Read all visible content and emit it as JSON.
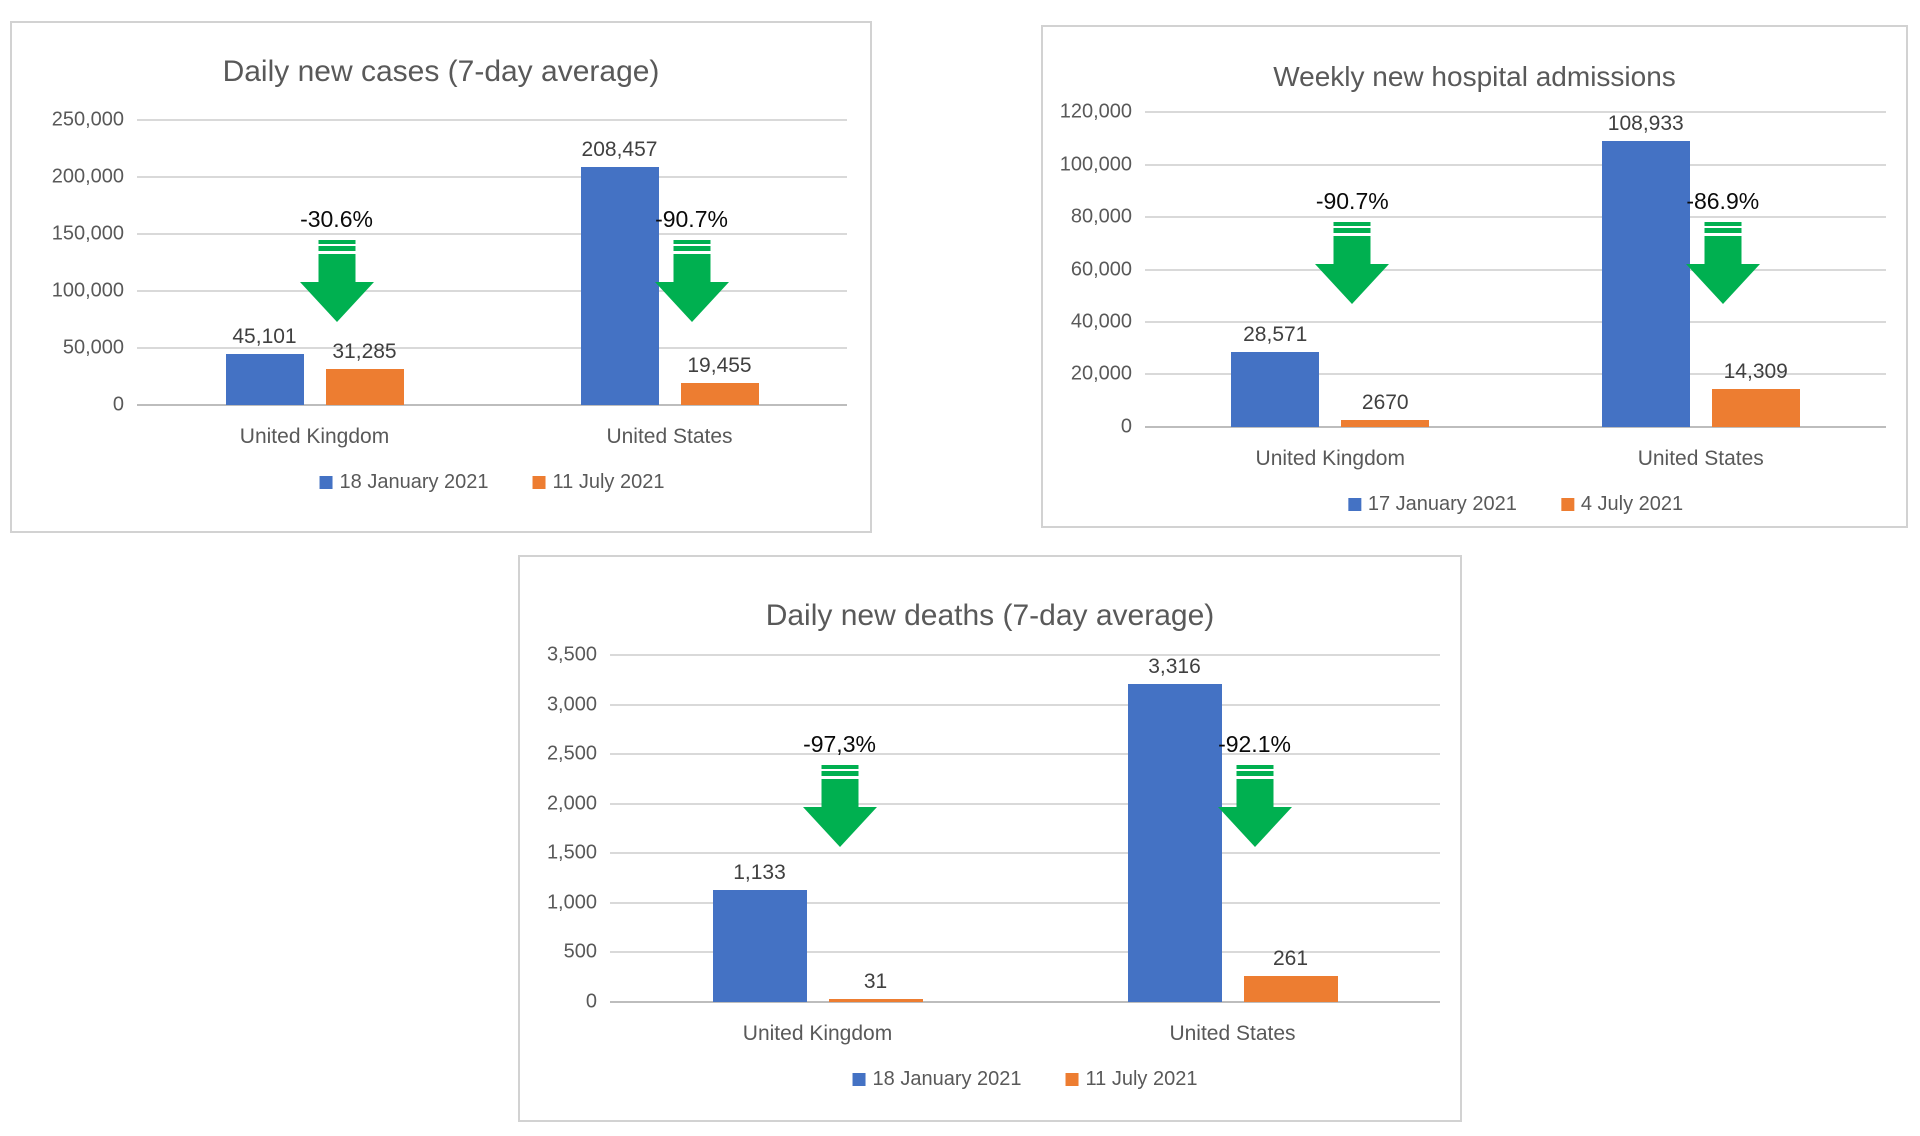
{
  "colors": {
    "series_blue": "#4472C4",
    "series_orange": "#ED7D31",
    "arrow_green": "#00B050",
    "text_gray": "#595959",
    "value_label_gray": "#404040",
    "gridline_gray": "#D9D9D9"
  },
  "chart_data": [
    {
      "type": "bar",
      "title": "Daily new cases (7-day average)",
      "categories": [
        "United Kingdom",
        "United States"
      ],
      "series": [
        {
          "name": "18 January 2021",
          "color": "#4472C4",
          "values": [
            45101,
            208457
          ],
          "value_labels": [
            "45,101",
            "208,457"
          ]
        },
        {
          "name": "11 July 2021",
          "color": "#ED7D31",
          "values": [
            31285,
            19455
          ],
          "value_labels": [
            "31,285",
            "19,455"
          ]
        }
      ],
      "pct_change_labels": [
        "-30.6%",
        "-90.7%"
      ],
      "ymin": 0,
      "ymax": 250000,
      "yticks": [
        "250,000",
        "200,000",
        "150,000",
        "100,000",
        "50,000",
        "0"
      ],
      "grid": true,
      "legend_position": "bottom"
    },
    {
      "type": "bar",
      "title": "Weekly new hospital admissions",
      "categories": [
        "United Kingdom",
        "United States"
      ],
      "series": [
        {
          "name": "17 January 2021",
          "color": "#4472C4",
          "values": [
            28571,
            108933
          ],
          "value_labels": [
            "28,571",
            "108,933"
          ]
        },
        {
          "name": "4 July 2021",
          "color": "#ED7D31",
          "values": [
            2670,
            14309
          ],
          "value_labels": [
            "2670",
            "14,309"
          ]
        }
      ],
      "pct_change_labels": [
        "-90.7%",
        "-86.9%"
      ],
      "ymin": 0,
      "ymax": 120000,
      "yticks": [
        "120,000",
        "100,000",
        "80,000",
        "60,000",
        "40,000",
        "20,000",
        "0"
      ],
      "grid": true,
      "legend_position": "bottom"
    },
    {
      "type": "bar",
      "title": "Daily new deaths (7-day average)",
      "categories": [
        "United Kingdom",
        "United States"
      ],
      "series": [
        {
          "name": "18 January 2021",
          "color": "#4472C4",
          "values": [
            1133,
            3316
          ],
          "value_labels": [
            "1,133",
            "3,316"
          ]
        },
        {
          "name": "11 July 2021",
          "color": "#ED7D31",
          "values": [
            31,
            261
          ],
          "value_labels": [
            "31",
            "261"
          ]
        }
      ],
      "pct_change_labels": [
        "-97,3%",
        "-92.1%"
      ],
      "ymin": 0,
      "ymax": 3500,
      "yticks": [
        "3,500",
        "3,000",
        "2,500",
        "2,000",
        "1,500",
        "1,000",
        "500",
        "0"
      ],
      "grid": true,
      "legend_position": "bottom"
    }
  ]
}
